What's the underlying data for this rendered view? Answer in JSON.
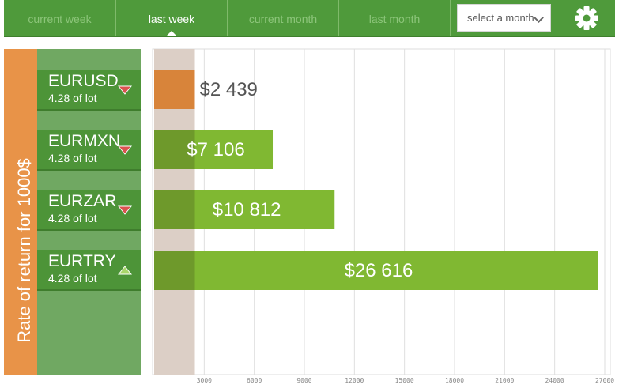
{
  "tabs": [
    {
      "label": "current week",
      "active": false
    },
    {
      "label": "last week",
      "active": true
    },
    {
      "label": "current month",
      "active": false
    },
    {
      "label": "last month",
      "active": false
    }
  ],
  "month_select": {
    "value": "select a month"
  },
  "settings_icon": "gear-icon",
  "side_label": "Rate of return for 1000$",
  "pairs": [
    {
      "name": "EURUSD",
      "lot": "4.28 of lot",
      "trend": "down"
    },
    {
      "name": "EURMXN",
      "lot": "4.28 of lot",
      "trend": "down"
    },
    {
      "name": "EURZAR",
      "lot": "4.28 of lot",
      "trend": "down"
    },
    {
      "name": "EURTRY",
      "lot": "4.28 of lot",
      "trend": "up"
    }
  ],
  "colors": {
    "topbar": "#4f9a3b",
    "highlight_bar": "#d8843a",
    "bar": "#80b832",
    "sidebar": "#e89348",
    "down_arrow": "#d9534f",
    "up_arrow": "#a8d56a"
  },
  "chart_data": {
    "type": "bar",
    "orientation": "horizontal",
    "categories": [
      "EURUSD",
      "EURMXN",
      "EURZAR",
      "EURTRY"
    ],
    "values": [
      2439,
      7106,
      10812,
      26616
    ],
    "value_labels": [
      "$2 439",
      "$7 106",
      "$10 812",
      "$26 616"
    ],
    "xlim": [
      0,
      27000
    ],
    "x_ticks": [
      3000,
      6000,
      9000,
      12000,
      15000,
      18000,
      21000,
      24000,
      27000
    ],
    "x_tick_labels": [
      "3000",
      "6000",
      "9000",
      "12000",
      "15000",
      "18000",
      "21000",
      "24000",
      "27000"
    ],
    "highlight_band": [
      0,
      2439
    ],
    "grid": true,
    "title": "",
    "xlabel": "",
    "ylabel": "Rate of return for 1000$"
  }
}
